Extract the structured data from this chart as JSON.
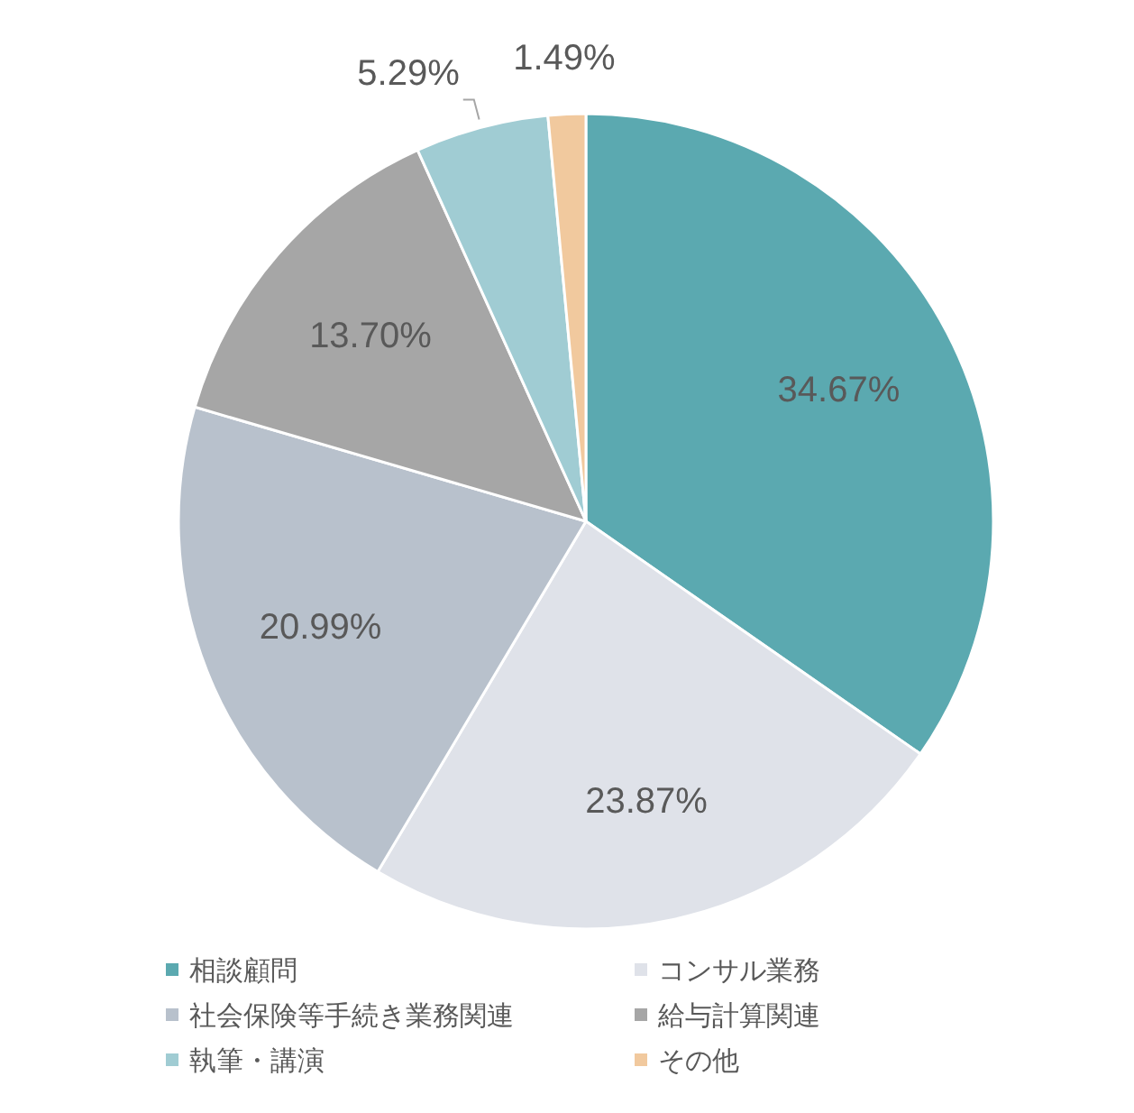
{
  "chart_data": {
    "type": "pie",
    "categories": [
      "相談顧問",
      "コンサル業務",
      "社会保険等手続き業務関連",
      "給与計算関連",
      "執筆・講演",
      "その他"
    ],
    "values": [
      34.67,
      23.87,
      20.99,
      13.7,
      5.29,
      1.49
    ],
    "value_labels": [
      "34.67%",
      "23.87%",
      "20.99%",
      "13.70%",
      "5.29%",
      "1.49%"
    ],
    "colors": [
      "#5ba9b0",
      "#dfe2e9",
      "#b8c1cc",
      "#a6a6a6",
      "#a0ccd3",
      "#f1c99e"
    ],
    "legend": "bottom"
  }
}
